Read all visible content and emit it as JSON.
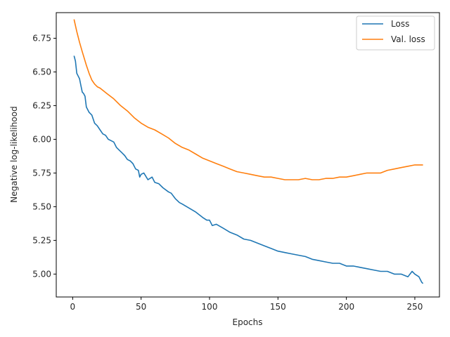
{
  "chart_data": {
    "type": "line",
    "title": "",
    "xlabel": "Epochs",
    "ylabel": "Negative log-likelihood",
    "xlim": [
      -12,
      268
    ],
    "ylim": [
      4.83,
      6.94
    ],
    "xticks": [
      0,
      50,
      100,
      150,
      200,
      250
    ],
    "yticks": [
      5.0,
      5.25,
      5.5,
      5.75,
      6.0,
      6.25,
      6.5,
      6.75
    ],
    "grid": false,
    "legend_position": "top-right",
    "series": [
      {
        "name": "Loss",
        "color": "#1f77b4",
        "x": [
          1,
          2,
          3,
          4,
          5,
          6,
          7,
          8,
          9,
          10,
          12,
          14,
          16,
          18,
          20,
          22,
          24,
          26,
          28,
          30,
          32,
          34,
          36,
          38,
          40,
          42,
          44,
          46,
          48,
          49,
          50,
          52,
          55,
          58,
          60,
          63,
          66,
          70,
          72,
          75,
          78,
          80,
          85,
          90,
          95,
          98,
          100,
          102,
          105,
          110,
          115,
          120,
          125,
          130,
          135,
          140,
          145,
          150,
          155,
          160,
          165,
          170,
          175,
          180,
          185,
          190,
          195,
          200,
          205,
          210,
          215,
          220,
          225,
          230,
          235,
          240,
          245,
          248,
          250,
          253,
          255,
          256
        ],
        "y": [
          6.62,
          6.58,
          6.49,
          6.47,
          6.45,
          6.4,
          6.35,
          6.34,
          6.32,
          6.24,
          6.2,
          6.18,
          6.12,
          6.1,
          6.07,
          6.04,
          6.03,
          6.0,
          5.99,
          5.98,
          5.94,
          5.92,
          5.9,
          5.88,
          5.85,
          5.84,
          5.82,
          5.78,
          5.77,
          5.72,
          5.74,
          5.75,
          5.7,
          5.72,
          5.68,
          5.67,
          5.64,
          5.61,
          5.6,
          5.56,
          5.53,
          5.52,
          5.49,
          5.46,
          5.42,
          5.4,
          5.4,
          5.36,
          5.37,
          5.34,
          5.31,
          5.29,
          5.26,
          5.25,
          5.23,
          5.21,
          5.19,
          5.17,
          5.16,
          5.15,
          5.14,
          5.13,
          5.11,
          5.1,
          5.09,
          5.08,
          5.08,
          5.06,
          5.06,
          5.05,
          5.04,
          5.03,
          5.02,
          5.02,
          5.0,
          5.0,
          4.98,
          5.02,
          5.0,
          4.98,
          4.94,
          4.93
        ]
      },
      {
        "name": "Val. loss",
        "color": "#ff7f0e",
        "x": [
          1,
          3,
          5,
          7,
          10,
          12,
          14,
          16,
          18,
          20,
          25,
          30,
          35,
          40,
          45,
          50,
          55,
          60,
          65,
          70,
          75,
          80,
          85,
          90,
          95,
          100,
          105,
          110,
          115,
          120,
          125,
          130,
          135,
          140,
          145,
          150,
          155,
          160,
          165,
          170,
          175,
          180,
          185,
          190,
          195,
          200,
          205,
          210,
          215,
          220,
          225,
          230,
          235,
          240,
          245,
          250,
          253,
          256
        ],
        "y": [
          6.89,
          6.8,
          6.72,
          6.65,
          6.55,
          6.49,
          6.44,
          6.41,
          6.39,
          6.38,
          6.34,
          6.3,
          6.25,
          6.21,
          6.16,
          6.12,
          6.09,
          6.07,
          6.04,
          6.01,
          5.97,
          5.94,
          5.92,
          5.89,
          5.86,
          5.84,
          5.82,
          5.8,
          5.78,
          5.76,
          5.75,
          5.74,
          5.73,
          5.72,
          5.72,
          5.71,
          5.7,
          5.7,
          5.7,
          5.71,
          5.7,
          5.7,
          5.71,
          5.71,
          5.72,
          5.72,
          5.73,
          5.74,
          5.75,
          5.75,
          5.75,
          5.77,
          5.78,
          5.79,
          5.8,
          5.81,
          5.81,
          5.81
        ]
      }
    ]
  }
}
